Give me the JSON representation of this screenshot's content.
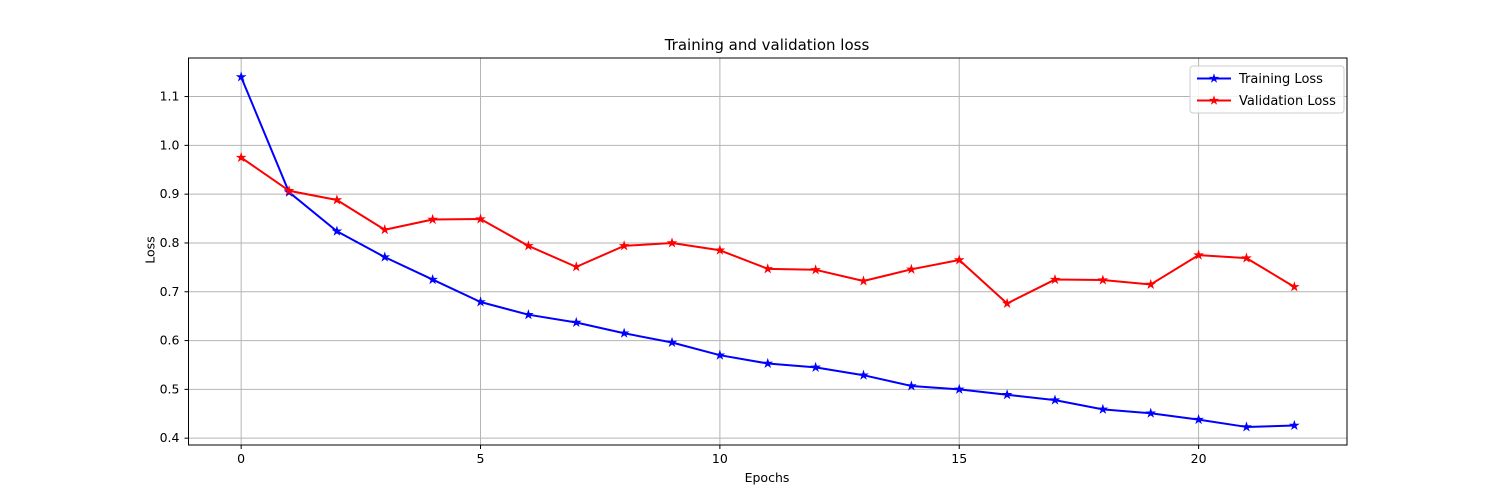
{
  "figure": {
    "title": "Training and validation loss",
    "xlabel": "Epochs",
    "ylabel": "Loss"
  },
  "chart_data": {
    "type": "line",
    "title": "Training and validation loss",
    "xlabel": "Epochs",
    "ylabel": "Loss",
    "x": [
      0,
      1,
      2,
      3,
      4,
      5,
      6,
      7,
      8,
      9,
      10,
      11,
      12,
      13,
      14,
      15,
      16,
      17,
      18,
      19,
      20,
      21,
      22
    ],
    "series": [
      {
        "name": "Training Loss",
        "color": "#0000ff",
        "marker": "star",
        "line_style": "solid",
        "values": [
          1.14,
          0.904,
          0.824,
          0.771,
          0.725,
          0.679,
          0.653,
          0.637,
          0.615,
          0.596,
          0.57,
          0.553,
          0.545,
          0.529,
          0.507,
          0.5,
          0.489,
          0.478,
          0.459,
          0.451,
          0.438,
          0.423,
          0.426
        ]
      },
      {
        "name": "Validation Loss",
        "color": "#ff0000",
        "marker": "star",
        "line_style": "solid",
        "values": [
          0.975,
          0.907,
          0.888,
          0.827,
          0.848,
          0.849,
          0.794,
          0.751,
          0.794,
          0.8,
          0.785,
          0.747,
          0.745,
          0.722,
          0.746,
          0.765,
          0.676,
          0.725,
          0.724,
          0.715,
          0.775,
          0.769,
          0.71
        ]
      }
    ],
    "xlim": [
      -1.1,
      23.1
    ],
    "ylim": [
      0.386,
      1.179
    ],
    "xticks": [
      0,
      5,
      10,
      15,
      20
    ],
    "yticks": [
      0.4,
      0.5,
      0.6,
      0.7,
      0.8,
      0.9,
      1.0,
      1.1
    ],
    "grid": true,
    "legend": {
      "position": "upper right",
      "labels": [
        "Training Loss",
        "Validation Loss"
      ]
    },
    "colors": {
      "grid": "#b4b4b4",
      "spine": "#000000",
      "tick": "#000000",
      "text": "#000000",
      "background": "#ffffff",
      "legend_border": "#cccccc",
      "legend_background": "#ffffff"
    }
  }
}
